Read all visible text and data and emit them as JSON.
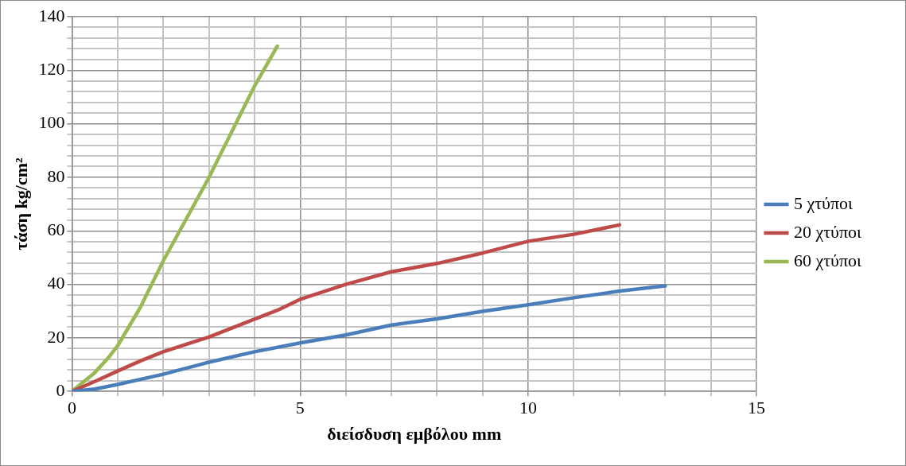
{
  "chart_data": {
    "type": "line",
    "xlabel": "διείσδυση εμβόλου mm",
    "ylabel": "τάση kg/cm²",
    "xlim": [
      0,
      15
    ],
    "ylim": [
      0,
      140
    ],
    "xticks": [
      0,
      {
        "value": 1,
        "label": null
      },
      {
        "value": 2,
        "label": null
      },
      {
        "value": 3,
        "label": null
      },
      {
        "value": 4,
        "label": null
      },
      5,
      {
        "value": 6,
        "label": null
      },
      {
        "value": 7,
        "label": null
      },
      {
        "value": 8,
        "label": null
      },
      {
        "value": 9,
        "label": null
      },
      10,
      {
        "value": 11,
        "label": null
      },
      {
        "value": 12,
        "label": null
      },
      {
        "value": 13,
        "label": null
      },
      {
        "value": 14,
        "label": null
      },
      15
    ],
    "yticks": [
      0,
      {
        "value": 4,
        "label": null
      },
      {
        "value": 8,
        "label": null
      },
      {
        "value": 12,
        "label": null
      },
      {
        "value": 16,
        "label": null
      },
      20,
      {
        "value": 24,
        "label": null
      },
      {
        "value": 28,
        "label": null
      },
      {
        "value": 32,
        "label": null
      },
      {
        "value": 36,
        "label": null
      },
      40,
      {
        "value": 44,
        "label": null
      },
      {
        "value": 48,
        "label": null
      },
      {
        "value": 52,
        "label": null
      },
      {
        "value": 56,
        "label": null
      },
      60,
      {
        "value": 64,
        "label": null
      },
      {
        "value": 68,
        "label": null
      },
      {
        "value": 72,
        "label": null
      },
      {
        "value": 76,
        "label": null
      },
      80,
      {
        "value": 84,
        "label": null
      },
      {
        "value": 88,
        "label": null
      },
      {
        "value": 92,
        "label": null
      },
      {
        "value": 96,
        "label": null
      },
      100,
      {
        "value": 104,
        "label": null
      },
      {
        "value": 108,
        "label": null
      },
      {
        "value": 112,
        "label": null
      },
      {
        "value": 116,
        "label": null
      },
      120,
      {
        "value": 124,
        "label": null
      },
      {
        "value": 128,
        "label": null
      },
      {
        "value": 132,
        "label": null
      },
      {
        "value": 136,
        "label": null
      },
      140
    ],
    "grid": true,
    "legend": "right",
    "marker": "none",
    "line_style": "solid",
    "series": [
      {
        "name": "5 χτύποι",
        "color": "#4a7ebb",
        "x": [
          0,
          0.5,
          1,
          2,
          3,
          4,
          5,
          6,
          7,
          8,
          9,
          10,
          11,
          12,
          13
        ],
        "values": [
          0,
          0.9,
          2.6,
          6.4,
          10.9,
          14.8,
          18.1,
          21.1,
          24.8,
          27.1,
          29.9,
          32.4,
          35,
          37.5,
          39.4
        ]
      },
      {
        "name": "20 χτύποι",
        "color": "#be4b48",
        "x": [
          0,
          0.5,
          1,
          1.5,
          2,
          3,
          4,
          4.5,
          5,
          6,
          7,
          8,
          9,
          10,
          11,
          12
        ],
        "values": [
          0,
          3.7,
          7.6,
          11.4,
          14.8,
          20.3,
          27,
          30.3,
          34.4,
          40,
          44.7,
          47.8,
          51.7,
          56.1,
          58.7,
          62.2
        ]
      },
      {
        "name": "60 χτύποι",
        "color": "#98b954",
        "x": [
          0,
          0.5,
          0.8,
          1,
          1.5,
          2,
          3,
          4,
          4.2,
          4.5
        ],
        "values": [
          0,
          7,
          12.6,
          17,
          31.4,
          48.7,
          79.8,
          114,
          120,
          129
        ]
      }
    ]
  }
}
